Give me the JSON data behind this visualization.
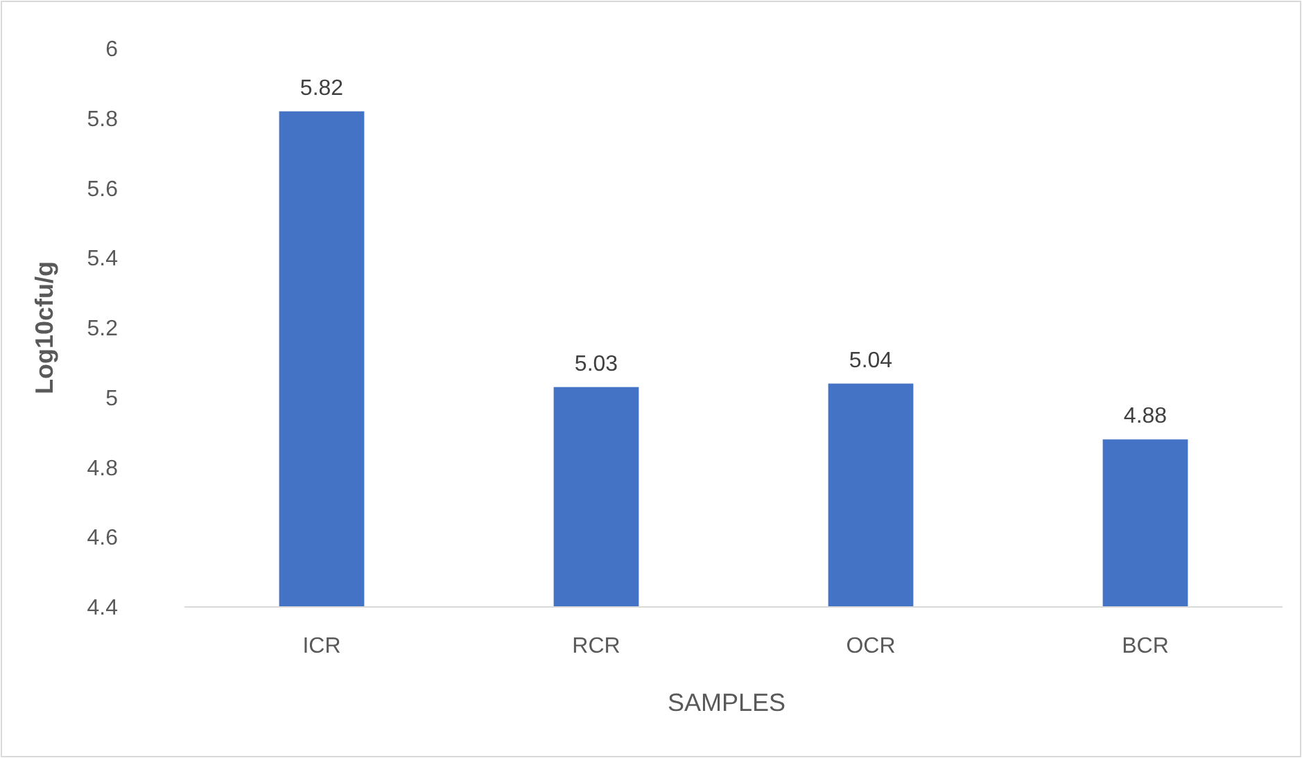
{
  "chart_data": {
    "type": "bar",
    "xlabel": "SAMPLES",
    "ylabel": "Log10cfu/g",
    "categories": [
      "ICR",
      "RCR",
      "OCR",
      "BCR"
    ],
    "values": [
      5.82,
      5.03,
      5.04,
      4.88
    ],
    "color": "#4472c4",
    "ylim": [
      4.4,
      6
    ],
    "yticks": [
      4.4,
      4.6,
      4.8,
      5,
      5.2,
      5.4,
      5.6,
      5.8,
      6
    ],
    "grid": false,
    "data_labels": true
  }
}
